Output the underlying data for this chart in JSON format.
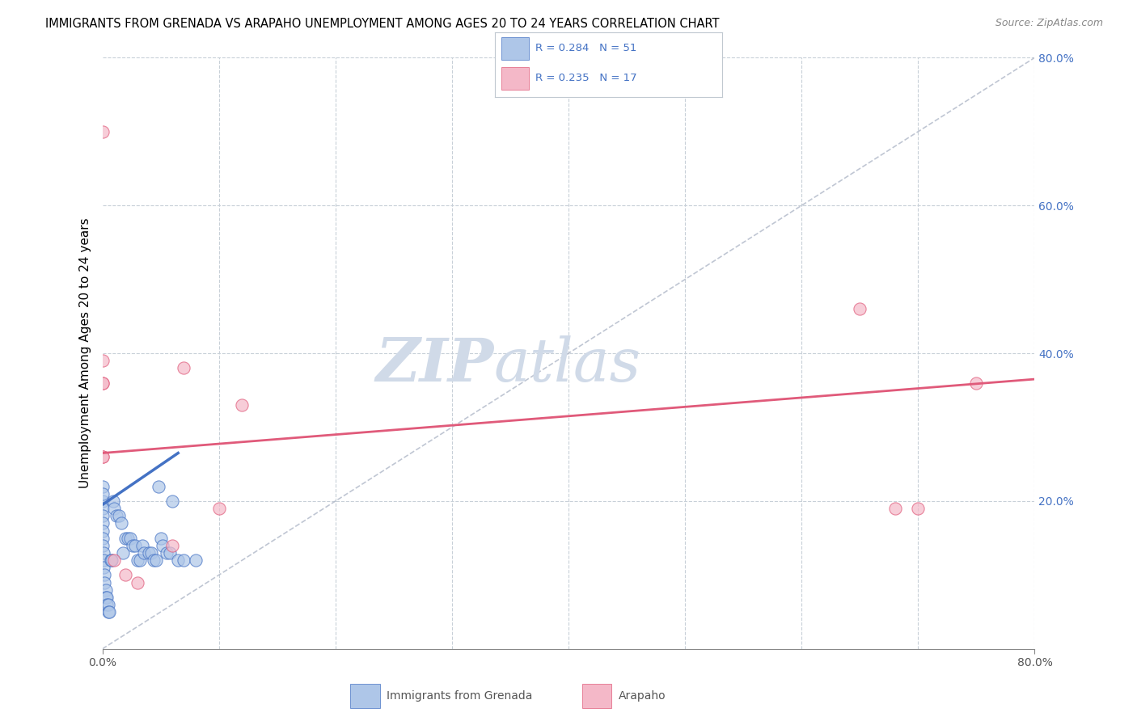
{
  "title": "IMMIGRANTS FROM GRENADA VS ARAPAHO UNEMPLOYMENT AMONG AGES 20 TO 24 YEARS CORRELATION CHART",
  "source": "Source: ZipAtlas.com",
  "ylabel": "Unemployment Among Ages 20 to 24 years",
  "x_min": 0.0,
  "x_max": 0.8,
  "y_min": 0.0,
  "y_max": 0.8,
  "blue_scatter_x": [
    0.0,
    0.0,
    0.0,
    0.0,
    0.0,
    0.0,
    0.0,
    0.0,
    0.0,
    0.001,
    0.001,
    0.001,
    0.002,
    0.002,
    0.003,
    0.003,
    0.004,
    0.004,
    0.005,
    0.005,
    0.006,
    0.007,
    0.008,
    0.009,
    0.01,
    0.012,
    0.014,
    0.016,
    0.018,
    0.02,
    0.022,
    0.024,
    0.026,
    0.028,
    0.03,
    0.032,
    0.034,
    0.036,
    0.04,
    0.042,
    0.044,
    0.046,
    0.048,
    0.05,
    0.052,
    0.055,
    0.058,
    0.06,
    0.065,
    0.07,
    0.08
  ],
  "blue_scatter_y": [
    0.2,
    0.22,
    0.21,
    0.19,
    0.18,
    0.17,
    0.16,
    0.15,
    0.14,
    0.13,
    0.12,
    0.11,
    0.1,
    0.09,
    0.08,
    0.07,
    0.07,
    0.06,
    0.06,
    0.05,
    0.05,
    0.12,
    0.12,
    0.2,
    0.19,
    0.18,
    0.18,
    0.17,
    0.13,
    0.15,
    0.15,
    0.15,
    0.14,
    0.14,
    0.12,
    0.12,
    0.14,
    0.13,
    0.13,
    0.13,
    0.12,
    0.12,
    0.22,
    0.15,
    0.14,
    0.13,
    0.13,
    0.2,
    0.12,
    0.12,
    0.12
  ],
  "pink_scatter_x": [
    0.0,
    0.0,
    0.0,
    0.0,
    0.0,
    0.0,
    0.01,
    0.02,
    0.03,
    0.06,
    0.07,
    0.1,
    0.12,
    0.65,
    0.68,
    0.7,
    0.75
  ],
  "pink_scatter_y": [
    0.7,
    0.39,
    0.36,
    0.36,
    0.26,
    0.26,
    0.12,
    0.1,
    0.09,
    0.14,
    0.38,
    0.19,
    0.33,
    0.46,
    0.19,
    0.19,
    0.36
  ],
  "blue_line_x": [
    0.0,
    0.065
  ],
  "blue_line_y": [
    0.195,
    0.265
  ],
  "pink_line_x": [
    0.0,
    0.8
  ],
  "pink_line_y": [
    0.265,
    0.365
  ],
  "diagonal_line_x": [
    0.0,
    0.8
  ],
  "diagonal_line_y": [
    0.0,
    0.8
  ],
  "blue_color": "#4472c4",
  "blue_fill": "#aec6e8",
  "pink_color": "#e05a7a",
  "pink_fill": "#f4b8c8",
  "diagonal_color": "#b0b8c8",
  "grid_color": "#c8d0d8",
  "watermark_color": "#d0dae8",
  "legend_r1": "R = 0.284",
  "legend_n1": "N = 51",
  "legend_r2": "R = 0.235",
  "legend_n2": "N = 17",
  "legend1_label": "Immigrants from Grenada",
  "legend2_label": "Arapaho"
}
